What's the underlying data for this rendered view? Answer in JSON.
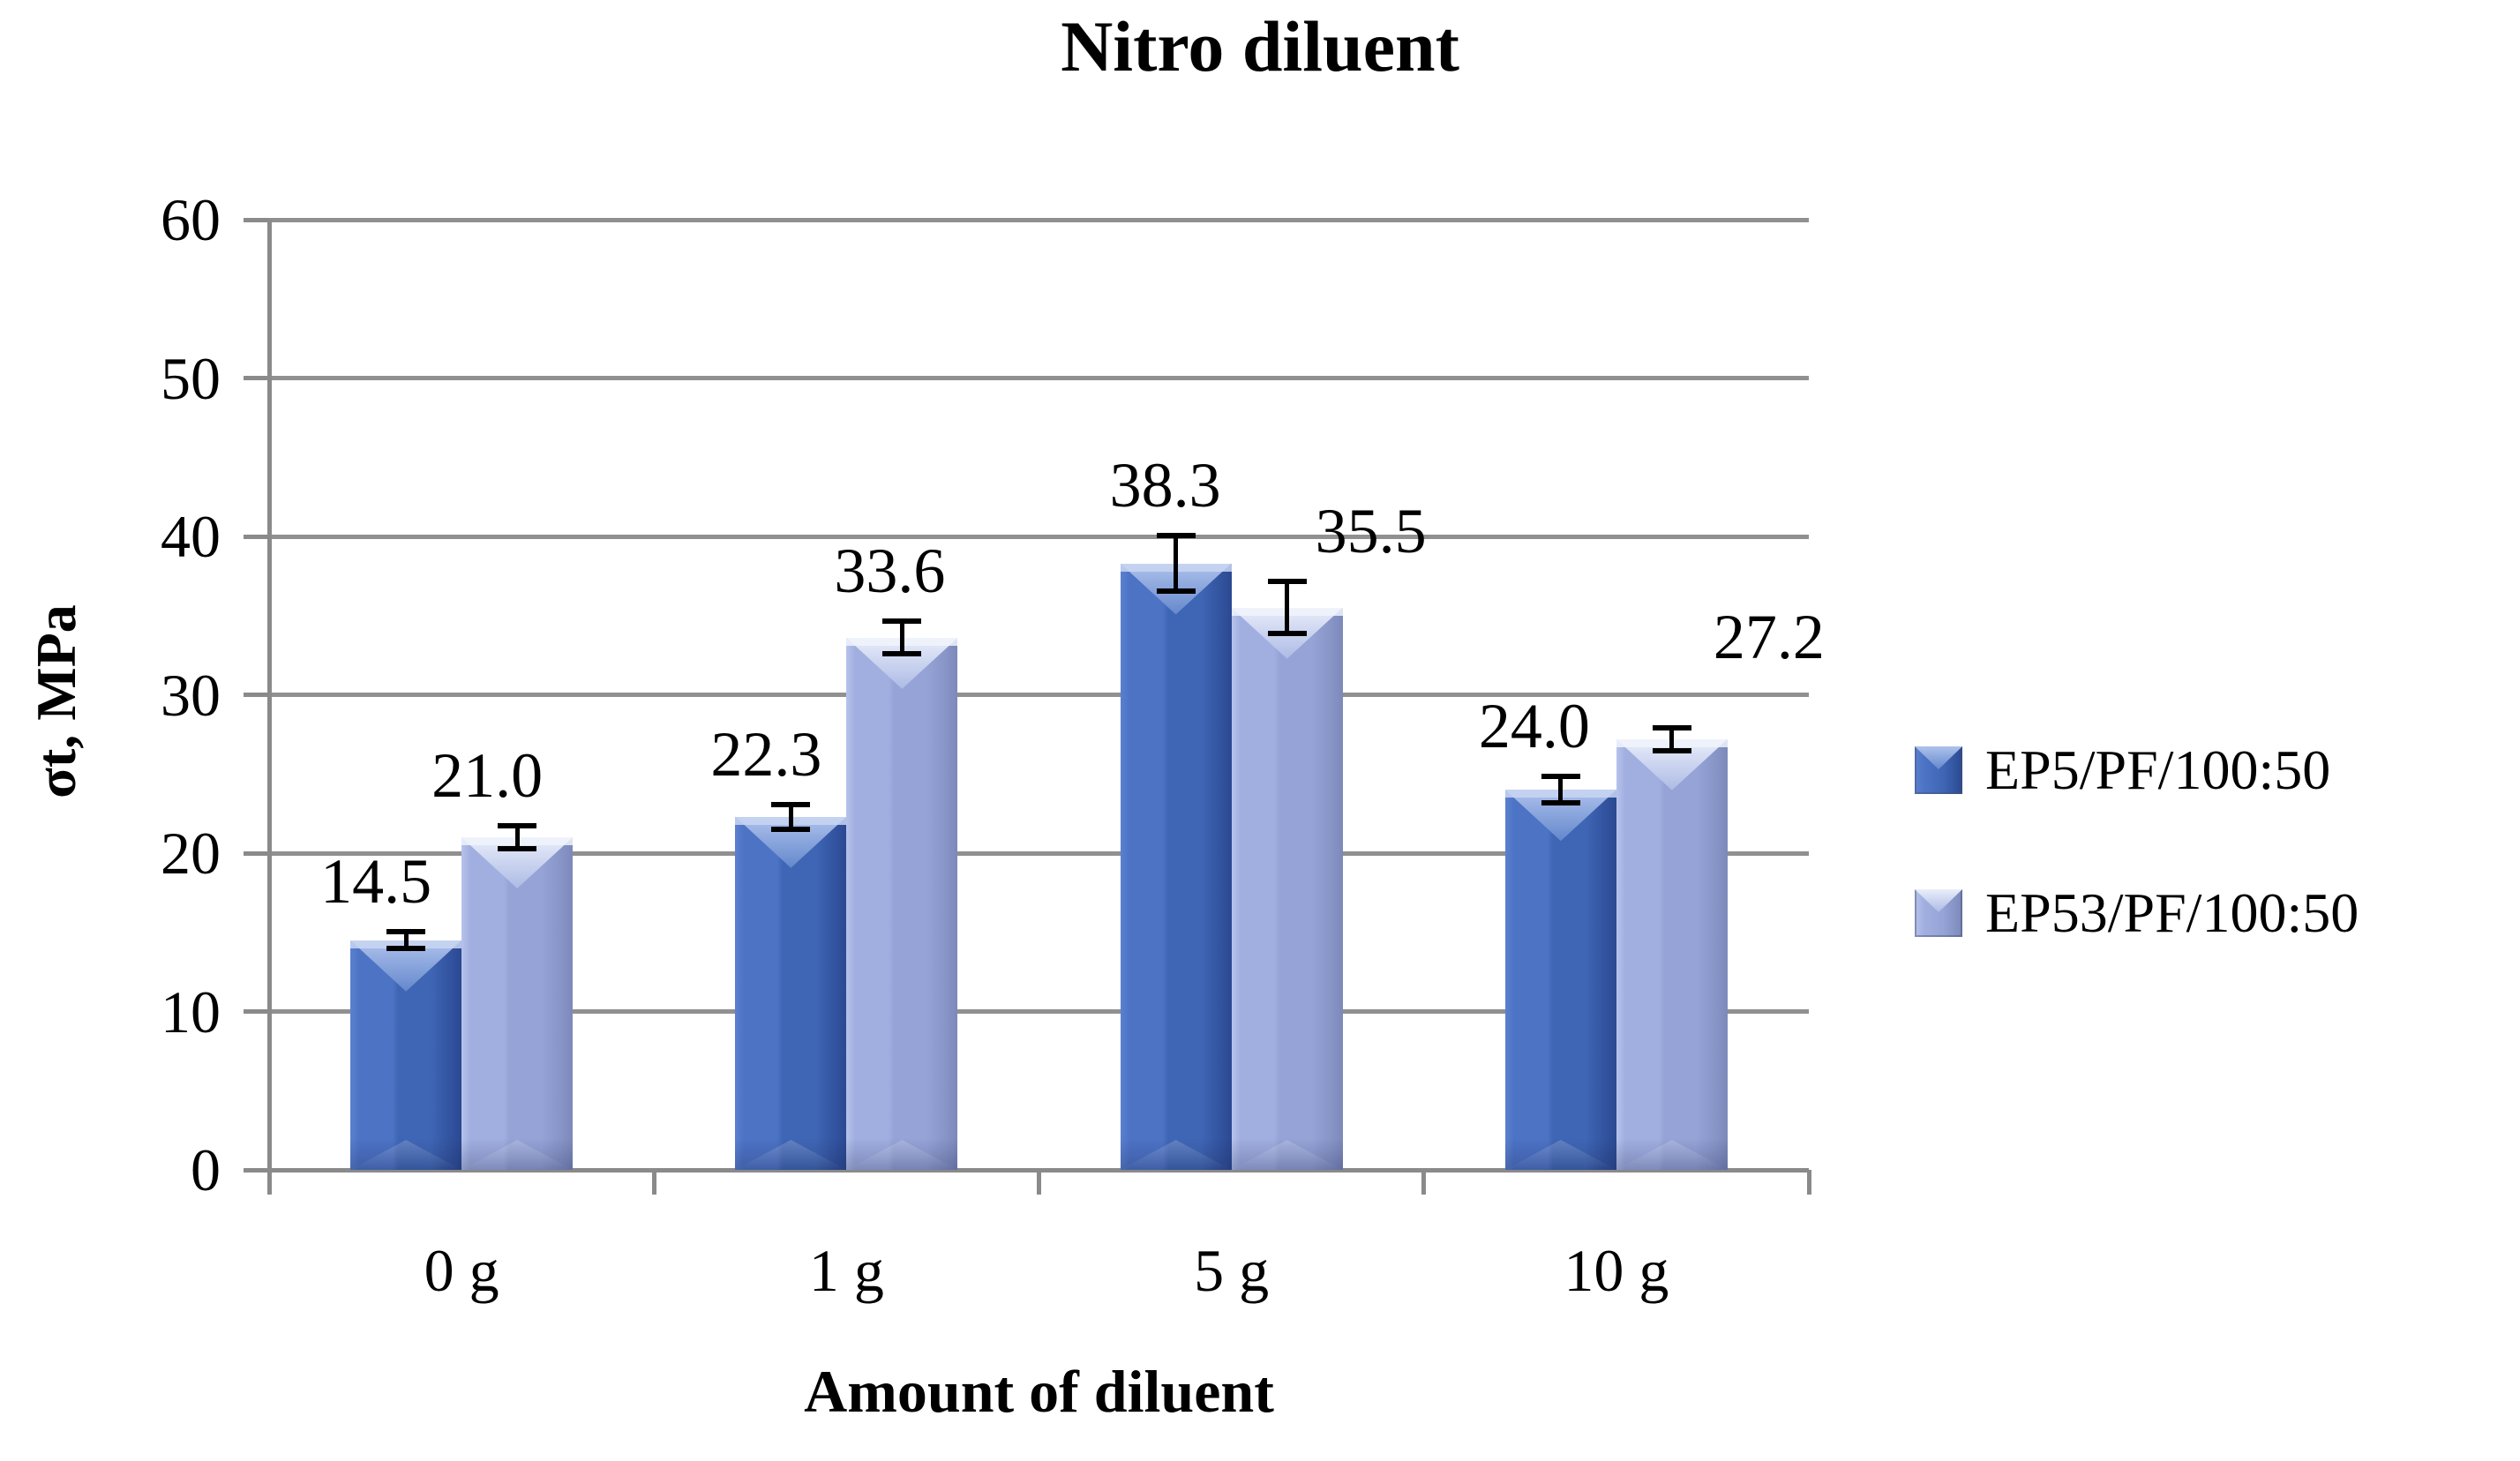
{
  "chart_data": {
    "type": "bar",
    "title": "Nitro diluent",
    "xlabel": "Amount of diluent",
    "ylabel": "σt, MPa",
    "categories": [
      "0 g",
      "1 g",
      "5 g",
      "10 g"
    ],
    "series": [
      {
        "name": "EP5/PF/100:50",
        "values": [
          14.5,
          22.3,
          38.3,
          24.0
        ],
        "errors": [
          0.7,
          0.95,
          1.9,
          1.0
        ],
        "value_labels": [
          "14.5",
          "22.3",
          "38.3",
          "24.0"
        ],
        "colors": {
          "edge_light": "#5b80cf",
          "body_left": "#4d73c5",
          "body_mid": "#3f66b5",
          "body_right": "#32539f",
          "edge_dark": "#2b4991",
          "cap_bright": "#aec2ec",
          "cap_mid": "#6488cc",
          "cap_strip": "#c9d6f2"
        }
      },
      {
        "name": "EP53/PF/100:50",
        "values": [
          21.0,
          33.6,
          35.5,
          27.2
        ],
        "errors": [
          0.9,
          1.2,
          1.8,
          0.9
        ],
        "value_labels": [
          "21.0",
          "33.6",
          "35.5",
          "27.2"
        ],
        "colors": {
          "edge_light": "#b7c3ec",
          "body_left": "#a1afe0",
          "body_mid": "#95a3d6",
          "body_right": "#8794c6",
          "edge_dark": "#7c89ba",
          "cap_bright": "#e9eefa",
          "cap_mid": "#adbae5",
          "cap_strip": "#f0f3fc"
        }
      }
    ],
    "ylim": [
      0,
      60
    ],
    "yticks": [
      0,
      10,
      20,
      30,
      40,
      50,
      60
    ],
    "grid": true,
    "grid_color": "#909090",
    "axis_color": "#8a8a8a",
    "error_bar_color": "#000000",
    "text_color": "#000000",
    "background_color": "#ffffff",
    "legend_position": "right"
  }
}
